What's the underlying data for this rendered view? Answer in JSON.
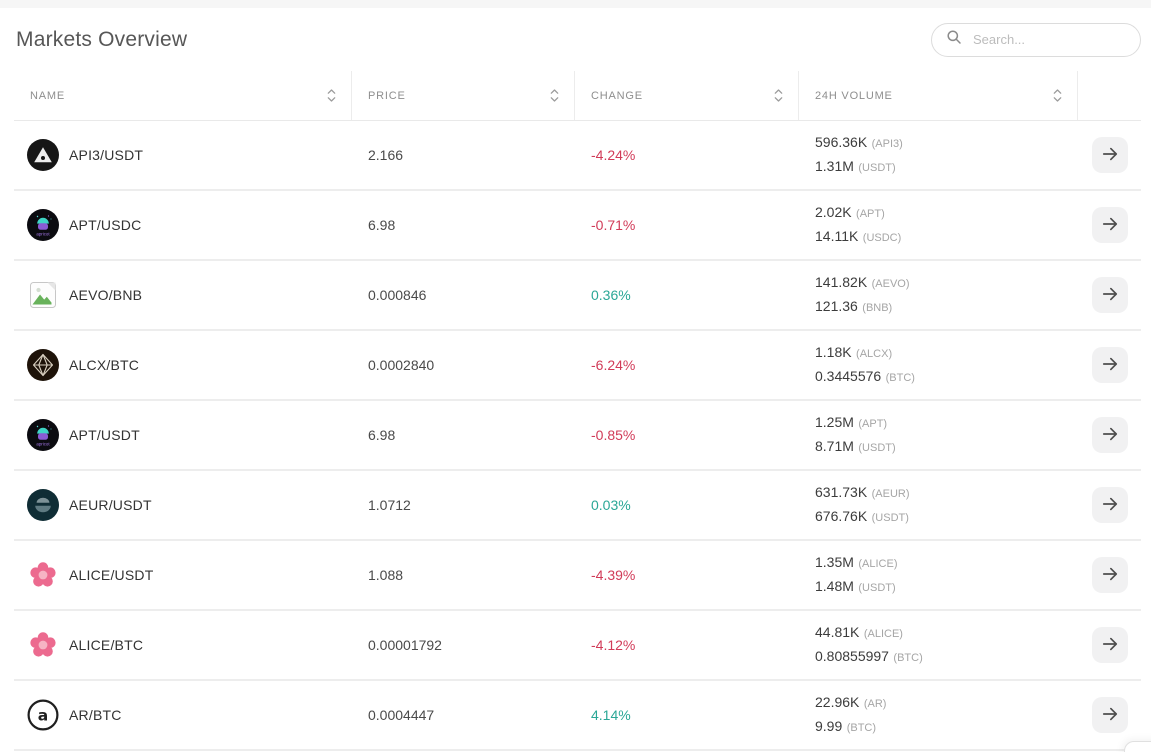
{
  "header": {
    "title": "Markets Overview",
    "search_placeholder": "Search..."
  },
  "colors": {
    "positive": "#2aa796",
    "negative": "#d13b58"
  },
  "table": {
    "columns": [
      {
        "label": "NAME",
        "sortable": true
      },
      {
        "label": "PRICE",
        "sortable": true
      },
      {
        "label": "CHANGE",
        "sortable": true
      },
      {
        "label": "24H VOLUME",
        "sortable": true
      },
      {
        "label": "",
        "sortable": false
      }
    ],
    "rows": [
      {
        "pair": "API3/USDT",
        "icon": "api3",
        "price": "2.166",
        "change": "-4.24%",
        "trend": "down",
        "volume_base": "596.36K",
        "volume_base_unit": "(API3)",
        "volume_quote": "1.31M",
        "volume_quote_unit": "(USDT)"
      },
      {
        "pair": "APT/USDC",
        "icon": "apricot",
        "price": "6.98",
        "change": "-0.71%",
        "trend": "down",
        "volume_base": "2.02K",
        "volume_base_unit": "(APT)",
        "volume_quote": "14.11K",
        "volume_quote_unit": "(USDC)"
      },
      {
        "pair": "AEVO/BNB",
        "icon": "aevo",
        "price": "0.000846",
        "change": "0.36%",
        "trend": "up",
        "volume_base": "141.82K",
        "volume_base_unit": "(AEVO)",
        "volume_quote": "121.36",
        "volume_quote_unit": "(BNB)"
      },
      {
        "pair": "ALCX/BTC",
        "icon": "alcx",
        "price": "0.0002840",
        "change": "-6.24%",
        "trend": "down",
        "volume_base": "1.18K",
        "volume_base_unit": "(ALCX)",
        "volume_quote": "0.3445576",
        "volume_quote_unit": "(BTC)"
      },
      {
        "pair": "APT/USDT",
        "icon": "apricot",
        "price": "6.98",
        "change": "-0.85%",
        "trend": "down",
        "volume_base": "1.25M",
        "volume_base_unit": "(APT)",
        "volume_quote": "8.71M",
        "volume_quote_unit": "(USDT)"
      },
      {
        "pair": "AEUR/USDT",
        "icon": "aeur",
        "price": "1.0712",
        "change": "0.03%",
        "trend": "up",
        "volume_base": "631.73K",
        "volume_base_unit": "(AEUR)",
        "volume_quote": "676.76K",
        "volume_quote_unit": "(USDT)"
      },
      {
        "pair": "ALICE/USDT",
        "icon": "alice",
        "price": "1.088",
        "change": "-4.39%",
        "trend": "down",
        "volume_base": "1.35M",
        "volume_base_unit": "(ALICE)",
        "volume_quote": "1.48M",
        "volume_quote_unit": "(USDT)"
      },
      {
        "pair": "ALICE/BTC",
        "icon": "alice",
        "price": "0.00001792",
        "change": "-4.12%",
        "trend": "down",
        "volume_base": "44.81K",
        "volume_base_unit": "(ALICE)",
        "volume_quote": "0.80855997",
        "volume_quote_unit": "(BTC)"
      },
      {
        "pair": "AR/BTC",
        "icon": "ar",
        "price": "0.0004447",
        "change": "4.14%",
        "trend": "up",
        "volume_base": "22.96K",
        "volume_base_unit": "(AR)",
        "volume_quote": "9.99",
        "volume_quote_unit": "(BTC)"
      }
    ]
  }
}
